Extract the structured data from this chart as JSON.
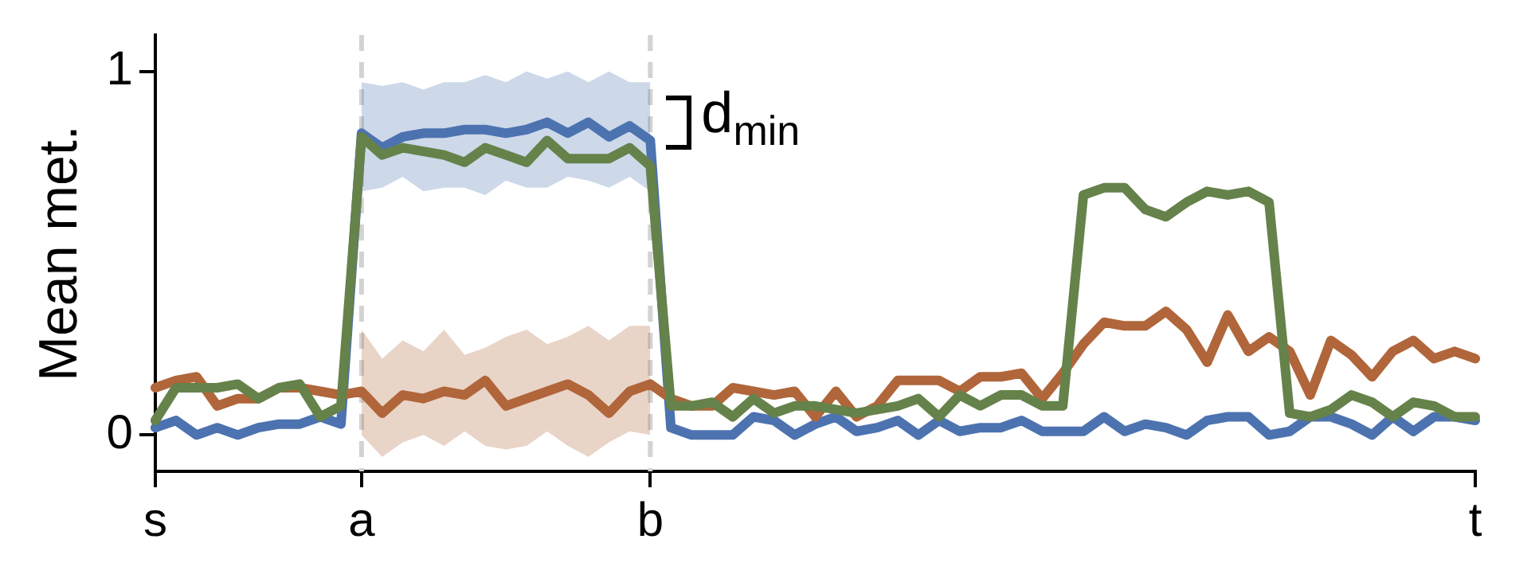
{
  "chart_data": {
    "type": "line",
    "ylabel": "Mean met.",
    "categories": [
      "s",
      null,
      null,
      null,
      null,
      null,
      null,
      null,
      null,
      null,
      "a",
      null,
      null,
      null,
      null,
      null,
      null,
      null,
      null,
      null,
      null,
      null,
      null,
      null,
      "b",
      null,
      null,
      null,
      null,
      null,
      null,
      null,
      null,
      null,
      null,
      null,
      null,
      null,
      null,
      null,
      null,
      null,
      null,
      null,
      null,
      null,
      null,
      null,
      null,
      null,
      null,
      null,
      null,
      null,
      null,
      null,
      null,
      null,
      null,
      null,
      null,
      null,
      null,
      null,
      "t"
    ],
    "ylim": [
      -0.1,
      1.1
    ],
    "yticks": [
      0,
      1
    ],
    "grid": false,
    "legend": false,
    "series": [
      {
        "color": "#4c72b0",
        "values": [
          0.02,
          0.04,
          0.0,
          0.02,
          0.0,
          0.02,
          0.03,
          0.03,
          0.05,
          0.03,
          0.83,
          0.79,
          0.82,
          0.83,
          0.83,
          0.84,
          0.84,
          0.83,
          0.84,
          0.86,
          0.83,
          0.86,
          0.82,
          0.85,
          0.81,
          0.02,
          0.0,
          0.0,
          0.0,
          0.05,
          0.04,
          0.0,
          0.03,
          0.05,
          0.01,
          0.02,
          0.04,
          0.0,
          0.04,
          0.01,
          0.02,
          0.02,
          0.04,
          0.01,
          0.01,
          0.01,
          0.05,
          0.01,
          0.03,
          0.02,
          0.0,
          0.04,
          0.05,
          0.05,
          0.0,
          0.01,
          0.05,
          0.05,
          0.03,
          0.0,
          0.05,
          0.01,
          0.05,
          0.05,
          0.04
        ],
        "upper": [
          null,
          null,
          null,
          null,
          null,
          null,
          null,
          null,
          null,
          null,
          0.97,
          0.96,
          0.97,
          0.95,
          0.97,
          0.97,
          0.99,
          0.97,
          1.0,
          0.98,
          1.0,
          0.97,
          1.0,
          0.97,
          0.97,
          null,
          null,
          null,
          null,
          null,
          null,
          null,
          null,
          null,
          null,
          null,
          null,
          null,
          null,
          null,
          null,
          null,
          null,
          null,
          null,
          null,
          null,
          null,
          null,
          null,
          null,
          null,
          null,
          null,
          null,
          null,
          null,
          null,
          null,
          null,
          null,
          null,
          null,
          null,
          null
        ],
        "lower": [
          null,
          null,
          null,
          null,
          null,
          null,
          null,
          null,
          null,
          null,
          0.67,
          0.68,
          0.71,
          0.67,
          0.68,
          0.68,
          0.66,
          0.7,
          0.68,
          0.68,
          0.71,
          0.7,
          0.68,
          0.71,
          0.67,
          null,
          null,
          null,
          null,
          null,
          null,
          null,
          null,
          null,
          null,
          null,
          null,
          null,
          null,
          null,
          null,
          null,
          null,
          null,
          null,
          null,
          null,
          null,
          null,
          null,
          null,
          null,
          null,
          null,
          null,
          null,
          null,
          null,
          null,
          null,
          null,
          null,
          null,
          null,
          null
        ]
      },
      {
        "color": "#b0663a",
        "values": [
          0.13,
          0.15,
          0.16,
          0.08,
          0.1,
          0.1,
          0.13,
          0.13,
          0.12,
          0.11,
          0.12,
          0.06,
          0.11,
          0.1,
          0.12,
          0.11,
          0.15,
          0.08,
          0.1,
          0.12,
          0.14,
          0.11,
          0.06,
          0.12,
          0.14,
          0.1,
          0.08,
          0.08,
          0.13,
          0.12,
          0.11,
          0.12,
          0.05,
          0.12,
          0.05,
          0.08,
          0.15,
          0.15,
          0.15,
          0.12,
          0.16,
          0.16,
          0.17,
          0.1,
          0.17,
          0.25,
          0.31,
          0.3,
          0.3,
          0.34,
          0.29,
          0.2,
          0.33,
          0.23,
          0.27,
          0.23,
          0.11,
          0.26,
          0.22,
          0.16,
          0.23,
          0.26,
          0.21,
          0.23,
          0.21
        ],
        "upper": [
          null,
          null,
          null,
          null,
          null,
          null,
          null,
          null,
          null,
          null,
          0.29,
          0.21,
          0.26,
          0.23,
          0.29,
          0.22,
          0.24,
          0.27,
          0.29,
          0.25,
          0.27,
          0.3,
          0.26,
          0.3,
          0.3,
          null,
          null,
          null,
          null,
          null,
          null,
          null,
          null,
          null,
          null,
          null,
          null,
          null,
          null,
          null,
          null,
          null,
          null,
          null,
          null,
          null,
          null,
          null,
          null,
          null,
          null,
          null,
          null,
          null,
          null,
          null,
          null,
          null,
          null,
          null,
          null,
          null,
          null,
          null,
          null
        ],
        "lower": [
          null,
          null,
          null,
          null,
          null,
          null,
          null,
          null,
          null,
          null,
          0.0,
          -0.06,
          -0.02,
          0.0,
          -0.03,
          0.01,
          -0.03,
          -0.04,
          -0.03,
          0.01,
          -0.03,
          -0.06,
          -0.02,
          0.01,
          0.0,
          null,
          null,
          null,
          null,
          null,
          null,
          null,
          null,
          null,
          null,
          null,
          null,
          null,
          null,
          null,
          null,
          null,
          null,
          null,
          null,
          null,
          null,
          null,
          null,
          null,
          null,
          null,
          null,
          null,
          null,
          null,
          null,
          null,
          null,
          null,
          null,
          null,
          null,
          null,
          null
        ]
      },
      {
        "color": "#65824a",
        "values": [
          0.04,
          0.13,
          0.13,
          0.13,
          0.14,
          0.1,
          0.13,
          0.14,
          0.05,
          0.08,
          0.82,
          0.77,
          0.79,
          0.78,
          0.77,
          0.75,
          0.79,
          0.77,
          0.75,
          0.81,
          0.76,
          0.76,
          0.76,
          0.79,
          0.74,
          0.08,
          0.08,
          0.09,
          0.05,
          0.1,
          0.06,
          0.08,
          0.08,
          0.07,
          0.06,
          0.07,
          0.08,
          0.1,
          0.05,
          0.11,
          0.08,
          0.11,
          0.11,
          0.08,
          0.08,
          0.66,
          0.68,
          0.68,
          0.62,
          0.6,
          0.64,
          0.67,
          0.66,
          0.67,
          0.64,
          0.06,
          0.05,
          0.07,
          0.11,
          0.09,
          0.05,
          0.09,
          0.08,
          0.05,
          0.05
        ]
      }
    ],
    "ref_lines": [
      {
        "axis": "x",
        "value": "a",
        "color": "#d3d3d3",
        "line_style": "dashed"
      },
      {
        "axis": "x",
        "value": "b",
        "color": "#d3d3d3",
        "line_style": "dashed"
      }
    ],
    "annotations": [
      {
        "text": "d$_{min}$",
        "x": "b",
        "y": 0.86
      }
    ]
  }
}
